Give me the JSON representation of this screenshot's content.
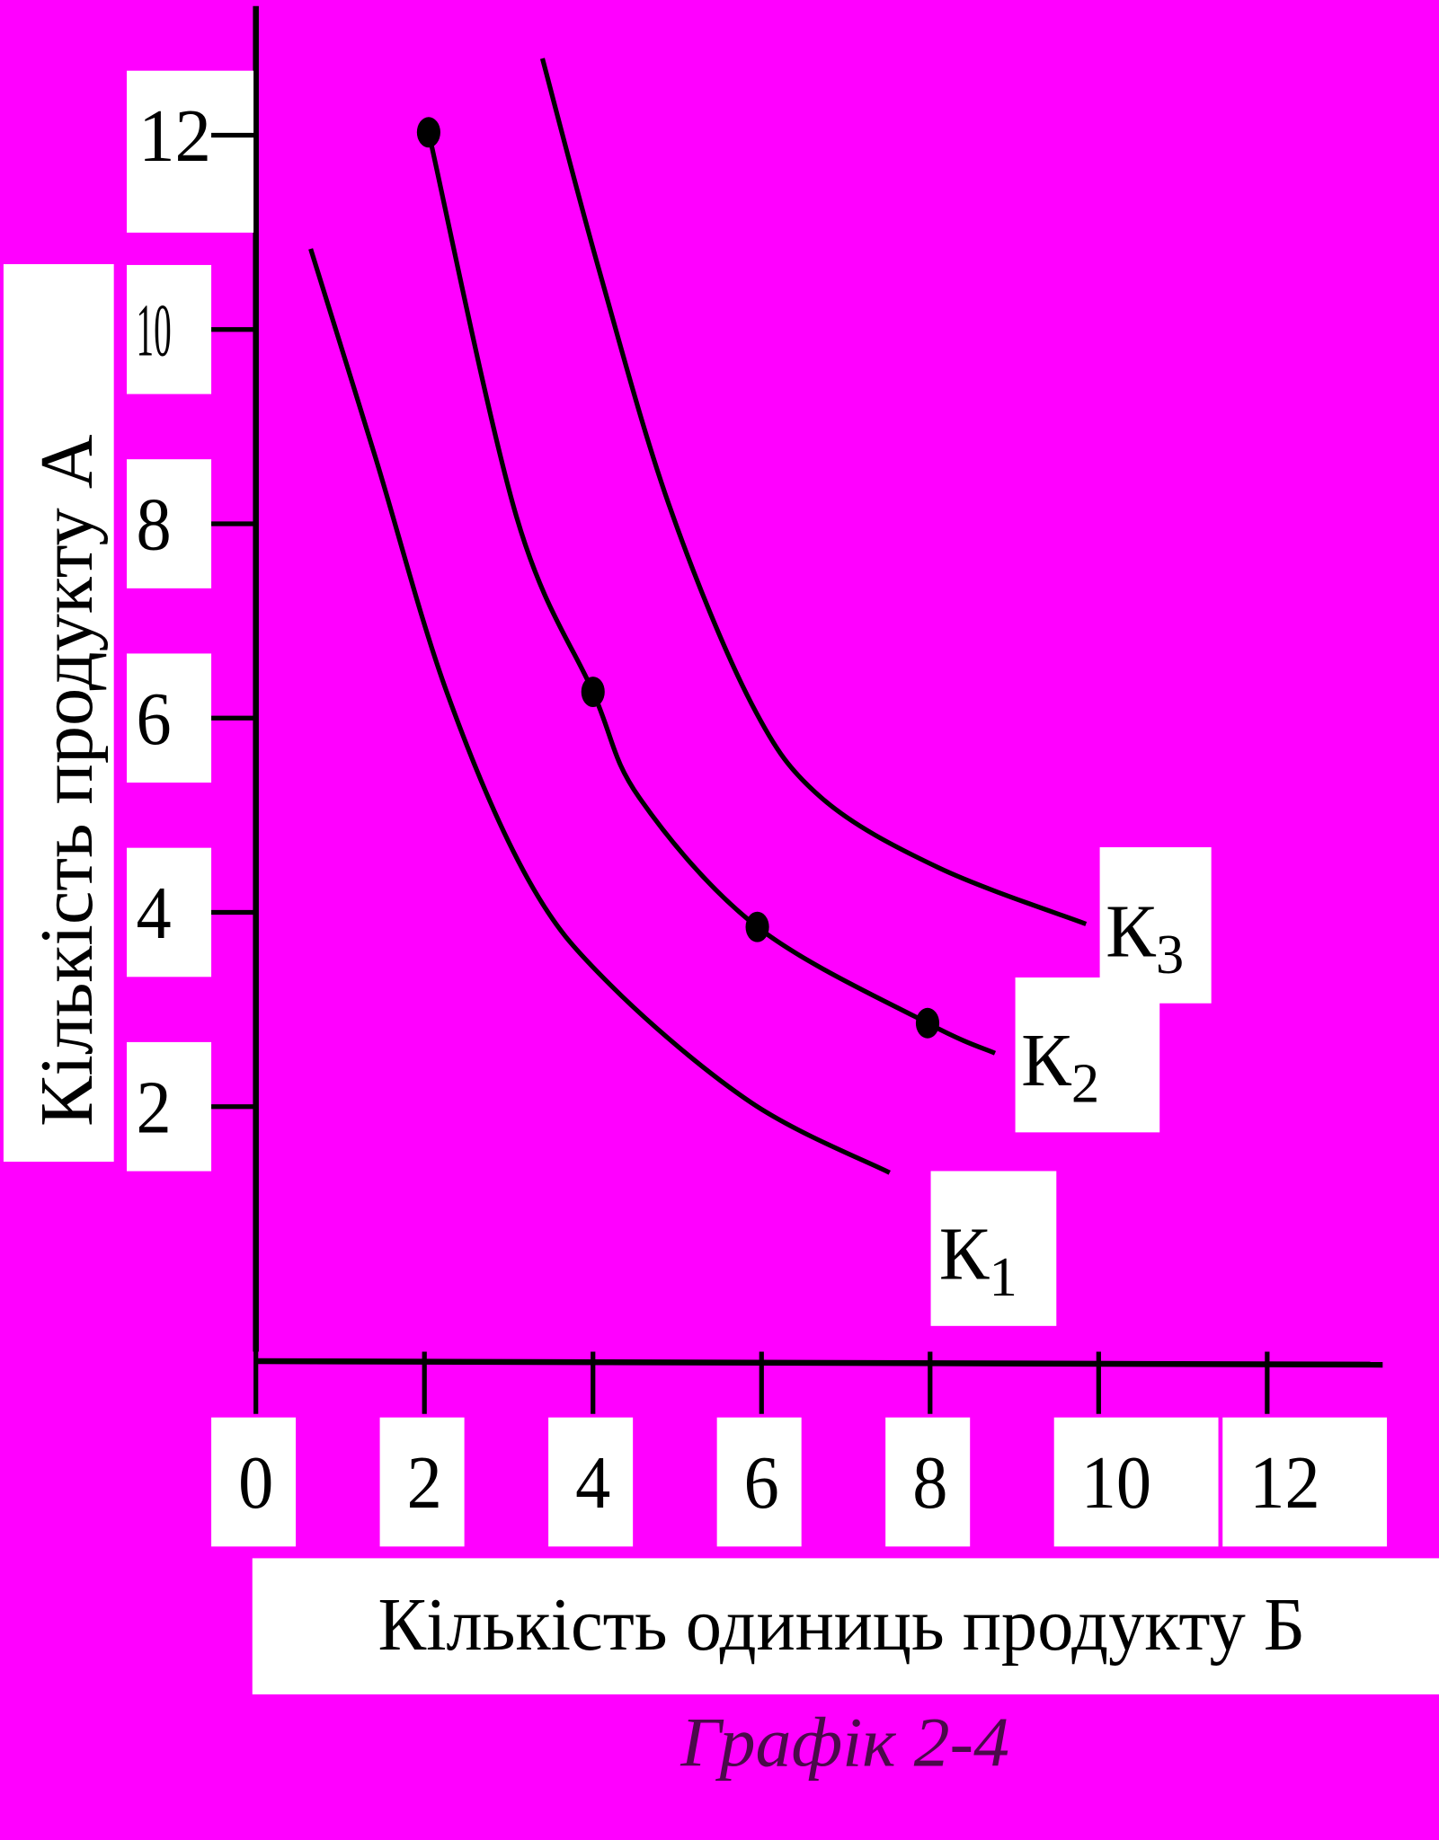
{
  "chart_data": {
    "type": "line",
    "title": "Графік 2-4",
    "x_label": "Кількість одиниць продукту Б",
    "y_label": "Кількість продукту А",
    "xlim": [
      0,
      13.37
    ],
    "ylim": [
      -0.62,
      13.33
    ],
    "xticks": [
      0,
      2,
      4,
      6,
      8,
      10,
      12
    ],
    "yticks": [
      2,
      4,
      6,
      8,
      10,
      12
    ],
    "color": "#000000",
    "series": [
      {
        "name": "К1",
        "x": [
          0.65,
          1.42,
          2.26,
          3.23,
          4.21,
          5.88,
          7.52
        ],
        "values": [
          10.83,
          8.68,
          6.28,
          4.34,
          3.25,
          2.04,
          1.32
        ]
      },
      {
        "name": "К2",
        "x": [
          2.05,
          3.09,
          4.0,
          4.55,
          5.95,
          7.97,
          8.77
        ],
        "values": [
          12.03,
          8.08,
          6.27,
          5.18,
          3.85,
          2.86,
          2.55
        ]
      },
      {
        "name": "К3",
        "x": [
          3.4,
          4.07,
          4.9,
          5.88,
          6.71,
          8.1,
          9.85
        ],
        "values": [
          12.79,
          10.62,
          8.2,
          6.15,
          5.18,
          4.46,
          3.88
        ]
      }
    ],
    "points": {
      "x": [
        2.05,
        4.0,
        5.95,
        7.97
      ],
      "values": [
        12.03,
        6.27,
        3.85,
        2.86
      ]
    }
  }
}
